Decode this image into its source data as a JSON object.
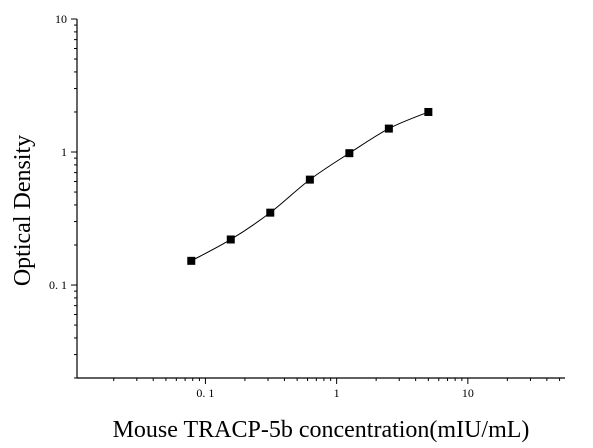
{
  "chart_data": {
    "type": "scatter",
    "title": "",
    "xlabel": "Mouse TRACP-5b concentration(mIU/mL)",
    "ylabel": "Optical Density",
    "x_scale": "log",
    "y_scale": "log",
    "xlim": [
      0.0105,
      55
    ],
    "ylim": [
      0.02,
      10
    ],
    "x_ticks": [
      {
        "value": 0.1,
        "label": "0. 1"
      },
      {
        "value": 1,
        "label": "1"
      },
      {
        "value": 10,
        "label": "10"
      }
    ],
    "y_ticks": [
      {
        "value": 0.1,
        "label": "0. 1"
      },
      {
        "value": 1,
        "label": "1"
      },
      {
        "value": 10,
        "label": "10"
      }
    ],
    "grid": false,
    "series": [
      {
        "marker": "square",
        "color": "#000000",
        "fit_curve": true,
        "x": [
          0.078,
          0.156,
          0.312,
          0.625,
          1.25,
          2.5,
          5.0
        ],
        "y": [
          0.152,
          0.22,
          0.35,
          0.62,
          0.98,
          1.5,
          2.0
        ]
      }
    ]
  }
}
